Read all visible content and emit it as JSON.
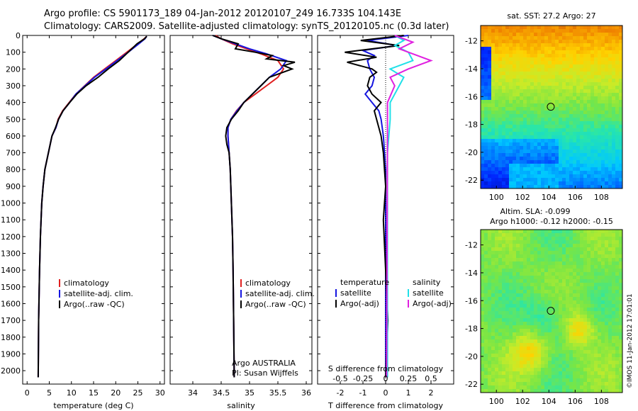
{
  "title": {
    "line1": "Argo profile: CS 5901173_189 04-Jan-2012 20120107_249 16.733S 104.143E",
    "line2": "Climatology: CARS2009. Satellite-adjusted climatology: synTS_20120105.nc (0.3d later)"
  },
  "colors": {
    "climatology": "#e02020",
    "satellite": "#1515e0",
    "argo": "#000000",
    "sat_salinity": "#20e0e8",
    "argo_salinity": "#e020e0"
  },
  "chart_data": [
    {
      "id": "temperature",
      "type": "line",
      "xlabel": "temperature (deg C)",
      "xlim": [
        -1,
        31
      ],
      "xticks": [
        0,
        5,
        10,
        15,
        20,
        25,
        30
      ],
      "ylim": [
        2080,
        0
      ],
      "yticks": [
        0,
        100,
        200,
        300,
        400,
        500,
        600,
        700,
        800,
        900,
        1000,
        1100,
        1200,
        1300,
        1400,
        1500,
        1600,
        1700,
        1800,
        1900,
        2000
      ],
      "legend": [
        "climatology",
        "satellite-adj. clim.",
        "Argo(..raw -QC)"
      ],
      "series": [
        {
          "name": "climatology",
          "color_key": "climatology",
          "x": [
            27,
            26.4,
            25,
            22.5,
            20,
            17.5,
            15,
            13,
            11,
            9.5,
            8,
            7,
            6.5,
            5.6,
            4.8,
            4,
            3.6,
            3.3,
            3,
            2.8,
            2.6,
            2.5
          ],
          "y": [
            5,
            20,
            50,
            100,
            150,
            200,
            250,
            300,
            350,
            400,
            450,
            500,
            550,
            600,
            700,
            800,
            900,
            1000,
            1200,
            1400,
            1700,
            2040
          ]
        },
        {
          "name": "satellite-adj. clim.",
          "color_key": "satellite",
          "x": [
            27,
            26.6,
            25.2,
            22.8,
            20.3,
            17.8,
            15.2,
            13.1,
            11,
            9.6,
            8.1,
            7.1,
            6.5,
            5.6,
            4.8,
            4,
            3.6,
            3.3,
            3,
            2.8,
            2.6,
            2.5
          ],
          "y": [
            5,
            20,
            50,
            100,
            150,
            200,
            250,
            300,
            350,
            400,
            450,
            500,
            550,
            600,
            700,
            800,
            900,
            1000,
            1200,
            1400,
            1700,
            2040
          ]
        },
        {
          "name": "Argo(..raw -QC)",
          "color_key": "argo",
          "x": [
            27,
            26.5,
            24.8,
            22.8,
            20.8,
            18.3,
            16,
            13.3,
            11.2,
            9.6,
            8.1,
            7.1,
            6.4,
            5.6,
            4.8,
            4,
            3.6,
            3.3,
            3,
            2.8,
            2.6,
            2.5
          ],
          "y": [
            5,
            20,
            50,
            100,
            150,
            200,
            250,
            300,
            350,
            400,
            450,
            500,
            550,
            600,
            700,
            800,
            900,
            1000,
            1200,
            1400,
            1700,
            2040
          ]
        }
      ]
    },
    {
      "id": "salinity",
      "type": "line",
      "xlabel": "salinity",
      "xlim": [
        33.6,
        36.1
      ],
      "xticks": [
        34,
        34.5,
        35,
        35.5,
        36
      ],
      "xtick_labels": [
        "34",
        "34.5",
        "35",
        "35.5",
        "36"
      ],
      "ylim": [
        2080,
        0
      ],
      "legend": [
        "climatology",
        "satellite-adj. clim.",
        "Argo(..raw -QC)"
      ],
      "annotation": [
        "Argo AUSTRALIA",
        "PI: Susan Wijffels"
      ],
      "series": [
        {
          "name": "climatology",
          "color_key": "climatology",
          "x": [
            34.4,
            34.5,
            34.7,
            34.95,
            35.2,
            35.5,
            35.6,
            35.5,
            35.3,
            35.1,
            34.9,
            34.77,
            34.67,
            34.62,
            34.62,
            34.64,
            34.66,
            34.68,
            34.7,
            34.71,
            34.72,
            34.73
          ],
          "y": [
            0,
            20,
            50,
            80,
            110,
            150,
            200,
            250,
            300,
            350,
            400,
            450,
            500,
            550,
            600,
            700,
            800,
            1000,
            1200,
            1400,
            1700,
            2040
          ]
        },
        {
          "name": "satellite-adj. clim.",
          "color_key": "satellite",
          "x": [
            34.35,
            34.5,
            34.75,
            35,
            35.3,
            35.65,
            35.55,
            35.35,
            35.2,
            35.05,
            34.9,
            34.78,
            34.67,
            34.62,
            34.62,
            34.64,
            34.66,
            34.68,
            34.7,
            34.71,
            34.72,
            34.73
          ],
          "y": [
            0,
            20,
            50,
            80,
            110,
            150,
            200,
            250,
            300,
            350,
            400,
            450,
            500,
            550,
            600,
            700,
            800,
            1000,
            1200,
            1400,
            1700,
            2040
          ]
        },
        {
          "name": "Argo(..raw -QC)",
          "color_key": "argo",
          "x": [
            34.35,
            34.5,
            34.8,
            34.75,
            35.1,
            35.4,
            35.3,
            35.8,
            35.6,
            35.75,
            35.35,
            35.2,
            35.05,
            34.9,
            34.8,
            34.68,
            34.6,
            34.58,
            34.6,
            34.64,
            34.66,
            34.68,
            34.7,
            34.71,
            34.72,
            34.73
          ],
          "y": [
            0,
            20,
            50,
            80,
            100,
            120,
            140,
            160,
            180,
            200,
            250,
            300,
            350,
            400,
            450,
            500,
            550,
            600,
            650,
            700,
            800,
            1000,
            1200,
            1400,
            1700,
            2040
          ]
        }
      ]
    },
    {
      "id": "difference",
      "type": "line",
      "xlabel": "T difference from climatology",
      "xlabel_top": "S difference from climatology",
      "xlim": [
        -3,
        3
      ],
      "xticks": [
        -2,
        -1,
        0,
        1,
        2
      ],
      "xticks_top": [
        -0.5,
        -0.25,
        0,
        0.25,
        0.5
      ],
      "xlim_top": [
        -0.75,
        0.75
      ],
      "ylim": [
        2080,
        0
      ],
      "legend_titles": [
        "temperature",
        "salinity"
      ],
      "legend": [
        "satellite",
        "Argo(-adj)",
        "satellite",
        "Argo(-adj)"
      ],
      "series": [
        {
          "name": "T satellite",
          "color_key": "satellite",
          "axis": "T",
          "x": [
            1,
            -0.8,
            0.5,
            -1,
            -0.5,
            -0.8,
            -0.7,
            -0.5,
            -0.6,
            -0.9,
            -0.6,
            -0.3,
            -0.2,
            -0.1,
            0,
            0,
            0
          ],
          "y": [
            0,
            30,
            60,
            90,
            120,
            150,
            200,
            250,
            300,
            350,
            400,
            450,
            500,
            600,
            800,
            1200,
            2040
          ]
        },
        {
          "name": "T Argo(-adj)",
          "color_key": "argo",
          "axis": "T",
          "x": [
            0.8,
            -1.1,
            0.6,
            -1.8,
            -0.4,
            -1.7,
            -0.6,
            -0.4,
            -0.7,
            -0.8,
            -0.6,
            -0.2,
            -0.5,
            -0.4,
            -0.2,
            -0.1,
            0,
            -0.1,
            0,
            0.1,
            0
          ],
          "y": [
            0,
            30,
            60,
            100,
            130,
            160,
            200,
            220,
            250,
            300,
            350,
            400,
            450,
            500,
            600,
            700,
            900,
            1100,
            1400,
            1700,
            2040
          ]
        },
        {
          "name": "S satellite",
          "color_key": "sat_salinity",
          "axis": "S",
          "x": [
            0.1,
            0.2,
            0.1,
            0.25,
            0.3,
            0.05,
            0.2,
            0.15,
            0.05,
            0.05,
            0.02,
            0.02
          ],
          "y": [
            0,
            30,
            60,
            100,
            150,
            200,
            250,
            300,
            400,
            500,
            700,
            2040
          ]
        },
        {
          "name": "S Argo(-adj)",
          "color_key": "argo_salinity",
          "axis": "S",
          "x": [
            0.1,
            0.3,
            0.15,
            0.5,
            0.25,
            0.05,
            0.1,
            0.02,
            0.02,
            0.01
          ],
          "y": [
            0,
            40,
            80,
            150,
            200,
            250,
            300,
            400,
            600,
            2040
          ]
        }
      ]
    },
    {
      "id": "sst_map",
      "type": "heatmap",
      "title": "sat. SST: 27.2 Argo: 27",
      "xticks": [
        100,
        102,
        104,
        106,
        108
      ],
      "yticks": [
        -12,
        -14,
        -16,
        -18,
        -20,
        -22
      ],
      "xlim": [
        98.8,
        109.6
      ],
      "ylim": [
        -22.6,
        -10.9
      ],
      "marker": {
        "lon": 104.143,
        "lat": -16.733
      }
    },
    {
      "id": "sla_map",
      "type": "heatmap",
      "title": "Altim. SLA: -0.099",
      "subtitle": "Argo h1000: -0.12 h2000: -0.15",
      "xticks": [
        100,
        102,
        104,
        106,
        108
      ],
      "yticks": [
        -12,
        -14,
        -16,
        -18,
        -20,
        -22
      ],
      "xlim": [
        98.8,
        109.6
      ],
      "ylim": [
        -22.6,
        -10.9
      ],
      "marker": {
        "lon": 104.143,
        "lat": -16.733
      }
    }
  ],
  "footer": "©IMOS 11-Jan-2012 17:01:01"
}
